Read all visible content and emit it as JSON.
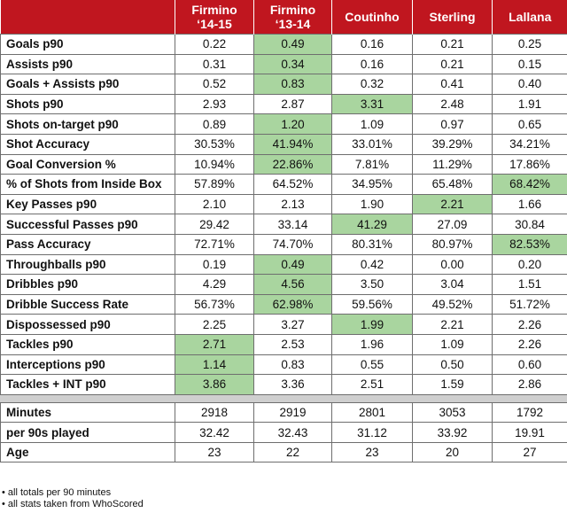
{
  "colors": {
    "header_bg": "#c0161f",
    "highlight": "#a9d59f",
    "separator": "#cfcfcf"
  },
  "columns": [
    {
      "line1": "Firmino",
      "line2": "‘14-15"
    },
    {
      "line1": "Firmino",
      "line2": "‘13-14"
    },
    {
      "line1": "Coutinho",
      "line2": ""
    },
    {
      "line1": "Sterling",
      "line2": ""
    },
    {
      "line1": "Lallana",
      "line2": ""
    }
  ],
  "rows": [
    {
      "label": "Goals p90",
      "values": [
        "0.22",
        "0.49",
        "0.16",
        "0.21",
        "0.25"
      ],
      "best": 1
    },
    {
      "label": "Assists p90",
      "values": [
        "0.31",
        "0.34",
        "0.16",
        "0.21",
        "0.15"
      ],
      "best": 1
    },
    {
      "label": "Goals + Assists p90",
      "values": [
        "0.52",
        "0.83",
        "0.32",
        "0.41",
        "0.40"
      ],
      "best": 1
    },
    {
      "label": "Shots p90",
      "values": [
        "2.93",
        "2.87",
        "3.31",
        "2.48",
        "1.91"
      ],
      "best": 2
    },
    {
      "label": "Shots on-target p90",
      "values": [
        "0.89",
        "1.20",
        "1.09",
        "0.97",
        "0.65"
      ],
      "best": 1
    },
    {
      "label": "Shot Accuracy",
      "values": [
        "30.53%",
        "41.94%",
        "33.01%",
        "39.29%",
        "34.21%"
      ],
      "best": 1
    },
    {
      "label": "Goal Conversion %",
      "values": [
        "10.94%",
        "22.86%",
        "7.81%",
        "11.29%",
        "17.86%"
      ],
      "best": 1
    },
    {
      "label": "% of Shots from Inside Box",
      "values": [
        "57.89%",
        "64.52%",
        "34.95%",
        "65.48%",
        "68.42%"
      ],
      "best": 4
    },
    {
      "label": "Key Passes p90",
      "values": [
        "2.10",
        "2.13",
        "1.90",
        "2.21",
        "1.66"
      ],
      "best": 3
    },
    {
      "label": "Successful Passes p90",
      "values": [
        "29.42",
        "33.14",
        "41.29",
        "27.09",
        "30.84"
      ],
      "best": 2
    },
    {
      "label": "Pass Accuracy",
      "values": [
        "72.71%",
        "74.70%",
        "80.31%",
        "80.97%",
        "82.53%"
      ],
      "best": 4
    },
    {
      "label": "Throughballs p90",
      "values": [
        "0.19",
        "0.49",
        "0.42",
        "0.00",
        "0.20"
      ],
      "best": 1
    },
    {
      "label": "Dribbles p90",
      "values": [
        "4.29",
        "4.56",
        "3.50",
        "3.04",
        "1.51"
      ],
      "best": 1
    },
    {
      "label": "Dribble Success Rate",
      "values": [
        "56.73%",
        "62.98%",
        "59.56%",
        "49.52%",
        "51.72%"
      ],
      "best": 1
    },
    {
      "label": "Dispossessed p90",
      "values": [
        "2.25",
        "3.27",
        "1.99",
        "2.21",
        "2.26"
      ],
      "best": 2
    },
    {
      "label": "Tackles p90",
      "values": [
        "2.71",
        "2.53",
        "1.96",
        "1.09",
        "2.26"
      ],
      "best": 0
    },
    {
      "label": "Interceptions p90",
      "values": [
        "1.14",
        "0.83",
        "0.55",
        "0.50",
        "0.60"
      ],
      "best": 0
    },
    {
      "label": "Tackles + INT p90",
      "values": [
        "3.86",
        "3.36",
        "2.51",
        "1.59",
        "2.86"
      ],
      "best": 0
    }
  ],
  "extra_rows": [
    {
      "label": "Minutes",
      "values": [
        "2918",
        "2919",
        "2801",
        "3053",
        "1792"
      ]
    },
    {
      "label": "per 90s played",
      "values": [
        "32.42",
        "32.43",
        "31.12",
        "33.92",
        "19.91"
      ]
    },
    {
      "label": "Age",
      "values": [
        "23",
        "22",
        "23",
        "20",
        "27"
      ]
    }
  ],
  "notes": [
    "• all totals per 90 minutes",
    "• all stats taken from WhoScored"
  ]
}
